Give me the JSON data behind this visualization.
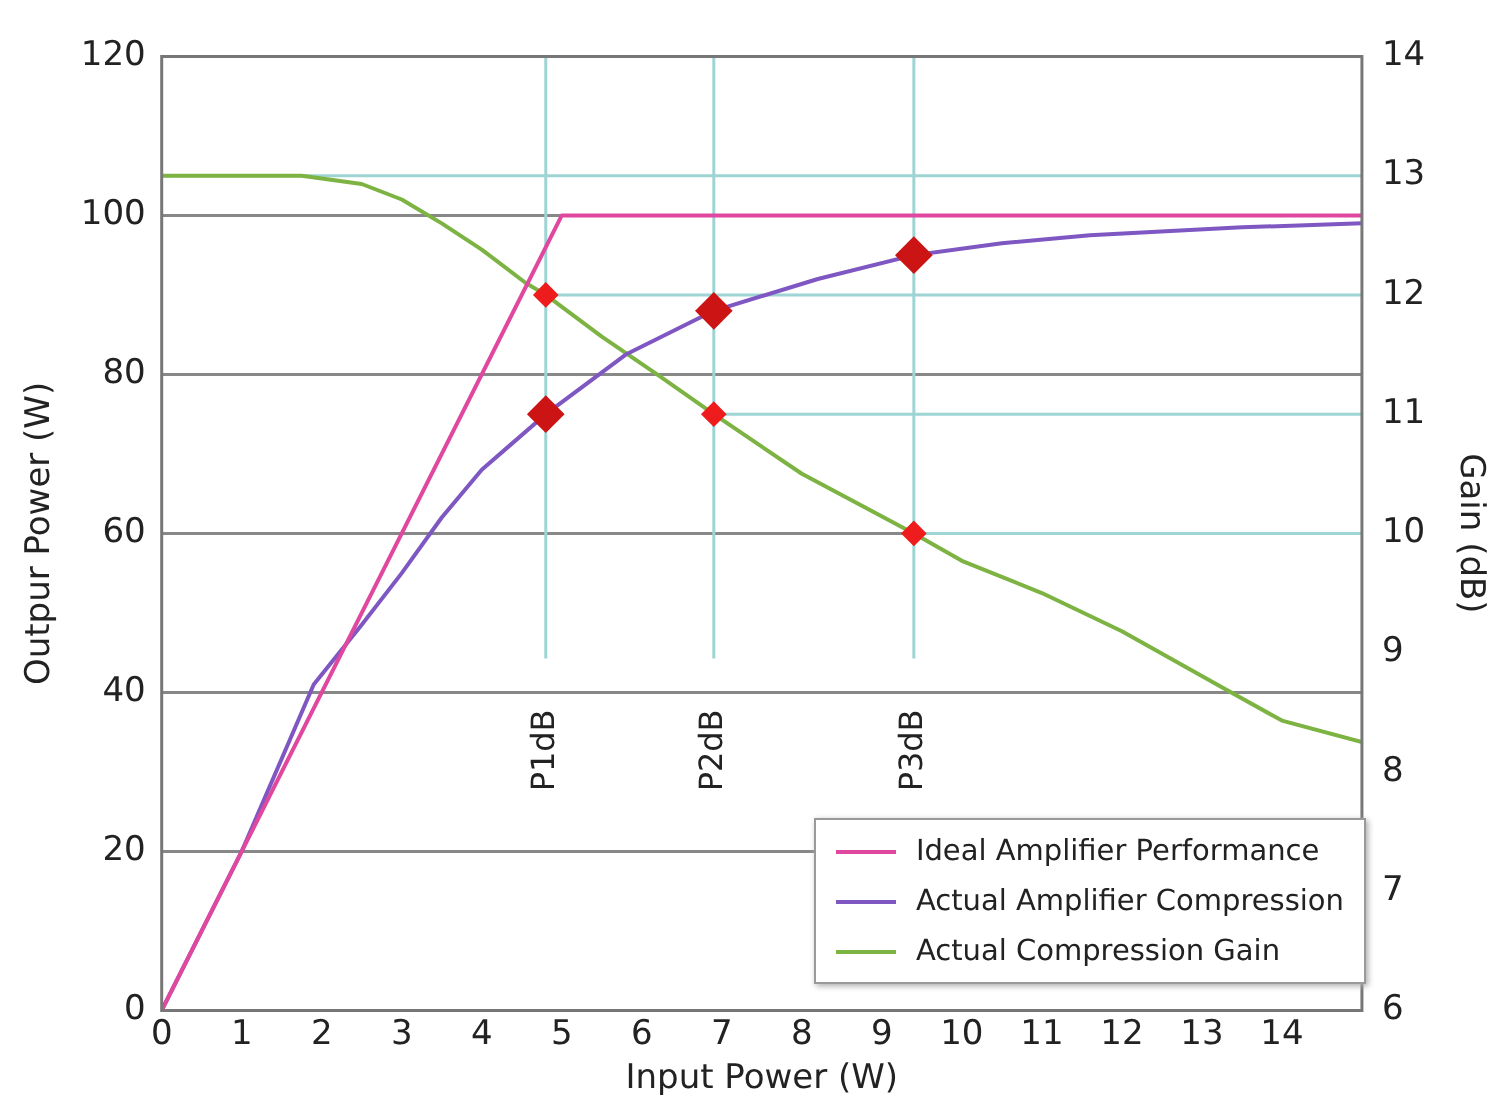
{
  "chart_data": {
    "type": "line",
    "xlabel": "Input Power (W)",
    "ylabel": "Outpur Power (W)",
    "y2label": "Gain (dB)",
    "xlim": [
      0,
      15
    ],
    "xticks": [
      0,
      1,
      2,
      3,
      4,
      5,
      6,
      7,
      8,
      9,
      10,
      11,
      12,
      13,
      14
    ],
    "ylim": [
      0,
      120
    ],
    "yticks": [
      0,
      20,
      40,
      60,
      80,
      100,
      120
    ],
    "y2lim": [
      6,
      14
    ],
    "y2ticks": [
      6,
      7,
      8,
      9,
      10,
      11,
      12,
      13,
      14
    ],
    "grid": "y",
    "legend": "bottom right",
    "marker": "none",
    "series": [
      {
        "name": "Ideal Amplifier Performance",
        "color": "#e0479e",
        "x": [
          0,
          5,
          15
        ],
        "values": [
          0,
          100,
          100
        ]
      },
      {
        "name": "Actual Amplifier Compression",
        "color": "#7e57c2",
        "x": [
          0,
          1,
          1.9,
          2.5,
          3,
          3.5,
          4,
          4.8,
          5.8,
          6.9,
          8.2,
          9.4,
          10.5,
          11.6,
          13.5,
          15
        ],
        "values": [
          0,
          20,
          41,
          48.5,
          55,
          62,
          68,
          75,
          82.5,
          88,
          92,
          95,
          96.5,
          97.5,
          98.5,
          99
        ]
      },
      {
        "name": "Actual Compression Gain",
        "color": "#7cb342",
        "axis": "y2",
        "x": [
          0,
          1.75,
          2.5,
          3,
          3.5,
          4,
          4.55,
          4.8,
          5.5,
          6.2,
          6.9,
          8,
          9.4,
          10,
          11,
          12,
          13.3,
          14,
          15
        ],
        "values": [
          13,
          13,
          12.93,
          12.8,
          12.6,
          12.38,
          12.1,
          12,
          11.65,
          11.33,
          11,
          10.5,
          10,
          9.77,
          9.5,
          9.18,
          8.69,
          8.43,
          8.25
        ]
      },
      {
        "type": "scatter",
        "color": "#cc1414",
        "marker": "diamond",
        "x": [
          4.8,
          6.9,
          9.4
        ],
        "values": [
          75,
          88,
          95
        ]
      },
      {
        "type": "scatter",
        "color": "#ee1c1c",
        "marker": "diamond",
        "axis": "y2",
        "x": [
          4.8,
          6.9,
          9.4
        ],
        "values": [
          12,
          11,
          10
        ]
      }
    ],
    "ref_lines": [
      {
        "axis": "x",
        "value": 4.8,
        "label": "P1dB",
        "color": "#9ed4d4"
      },
      {
        "axis": "x",
        "value": 6.9,
        "label": "P2dB",
        "color": "#9ed4d4"
      },
      {
        "axis": "x",
        "value": 9.4,
        "label": "P3dB",
        "color": "#9ed4d4"
      },
      {
        "axis": "y2",
        "value": 13,
        "color": "#9ed4d4"
      },
      {
        "axis": "y2",
        "value": 12,
        "color": "#9ed4d4"
      },
      {
        "axis": "y2",
        "value": 11,
        "color": "#9ed4d4"
      },
      {
        "axis": "y2",
        "value": 10,
        "color": "#9ed4d4"
      }
    ]
  }
}
